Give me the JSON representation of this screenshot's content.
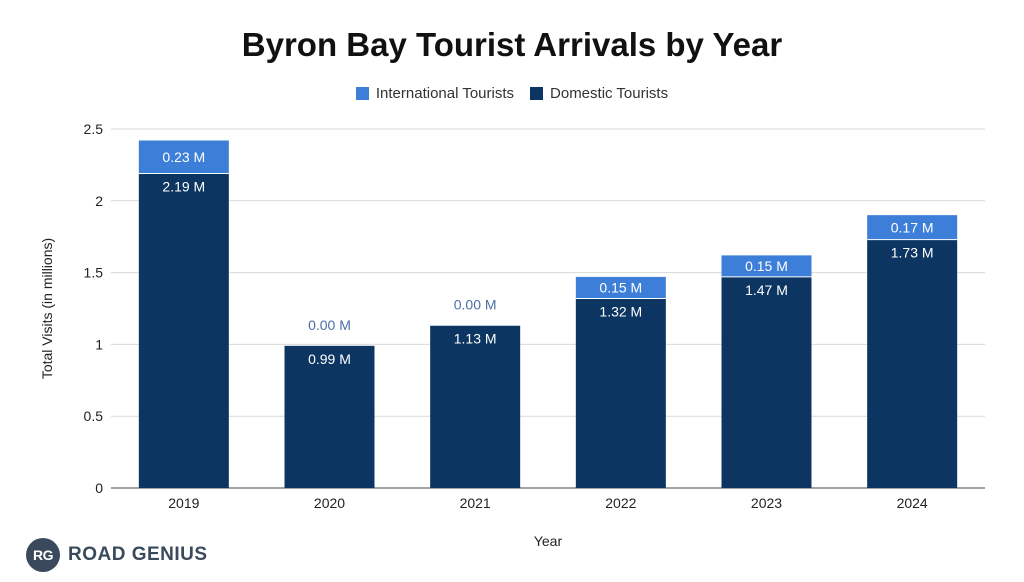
{
  "chart_data": {
    "type": "bar",
    "stacked": true,
    "title": "Byron Bay Tourist Arrivals by Year",
    "xlabel": "Year",
    "ylabel": "Total Visits (in millions)",
    "ylim": [
      0,
      2.5
    ],
    "yticks": [
      "0",
      "0.5",
      "1",
      "1.5",
      "2",
      "2.5"
    ],
    "categories": [
      "2019",
      "2020",
      "2021",
      "2022",
      "2023",
      "2024"
    ],
    "grid": true,
    "legend_position": "top-center",
    "series": [
      {
        "name": "Domestic Tourists",
        "color": "#0d3561",
        "values": [
          2.19,
          0.99,
          1.13,
          1.32,
          1.47,
          1.73
        ],
        "labels": [
          "2.19 M",
          "0.99 M",
          "1.13 M",
          "1.32 M",
          "1.47 M",
          "1.73 M"
        ]
      },
      {
        "name": "International Tourists",
        "color": "#3d7fd8",
        "values": [
          0.23,
          0.0,
          0.0,
          0.15,
          0.15,
          0.17
        ],
        "labels": [
          "0.23 M",
          "0.00 M",
          "0.00 M",
          "0.15 M",
          "0.15 M",
          "0.17 M"
        ]
      }
    ],
    "legend": [
      "International Tourists",
      "Domestic Tourists"
    ]
  },
  "brand": {
    "mark": "RG",
    "name": "ROAD GENIUS"
  }
}
